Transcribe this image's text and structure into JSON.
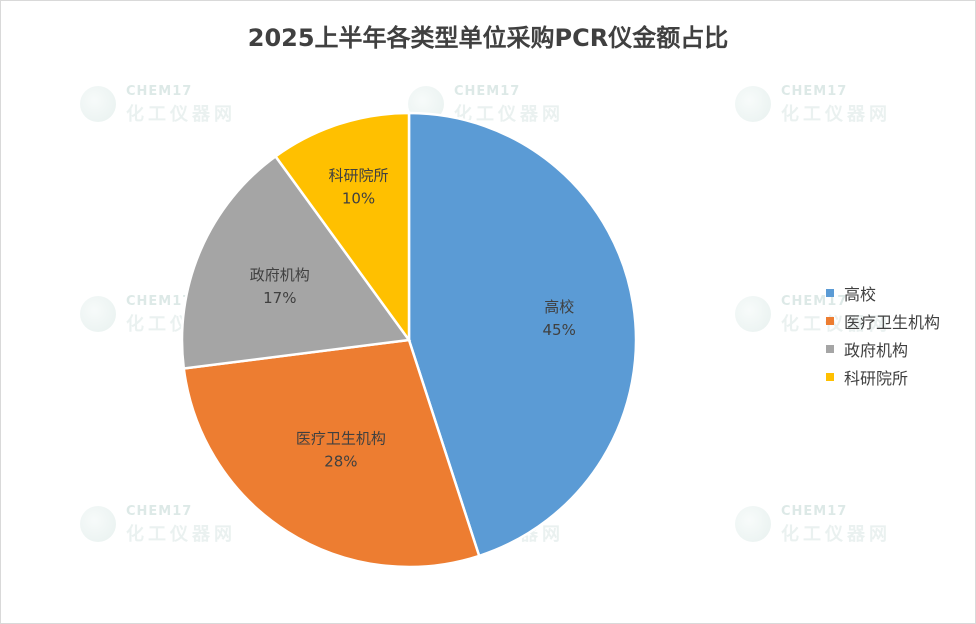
{
  "chart_data": {
    "type": "pie",
    "title": "2025上半年各类型单位采购PCR仪金额占比",
    "slices": [
      {
        "label": "高校",
        "value": 45,
        "value_label": "45%",
        "color": "#5b9bd5"
      },
      {
        "label": "医疗卫生机构",
        "value": 28,
        "value_label": "28%",
        "color": "#ed7d31"
      },
      {
        "label": "政府机构",
        "value": 17,
        "value_label": "17%",
        "color": "#a5a5a5"
      },
      {
        "label": "科研院所",
        "value": 10,
        "value_label": "10%",
        "color": "#ffc000"
      }
    ],
    "legend_position": "right",
    "start_angle": "12 o'clock",
    "direction": "clockwise"
  },
  "watermark": {
    "en": "CHEM17",
    "cn": "化工仪器网"
  }
}
